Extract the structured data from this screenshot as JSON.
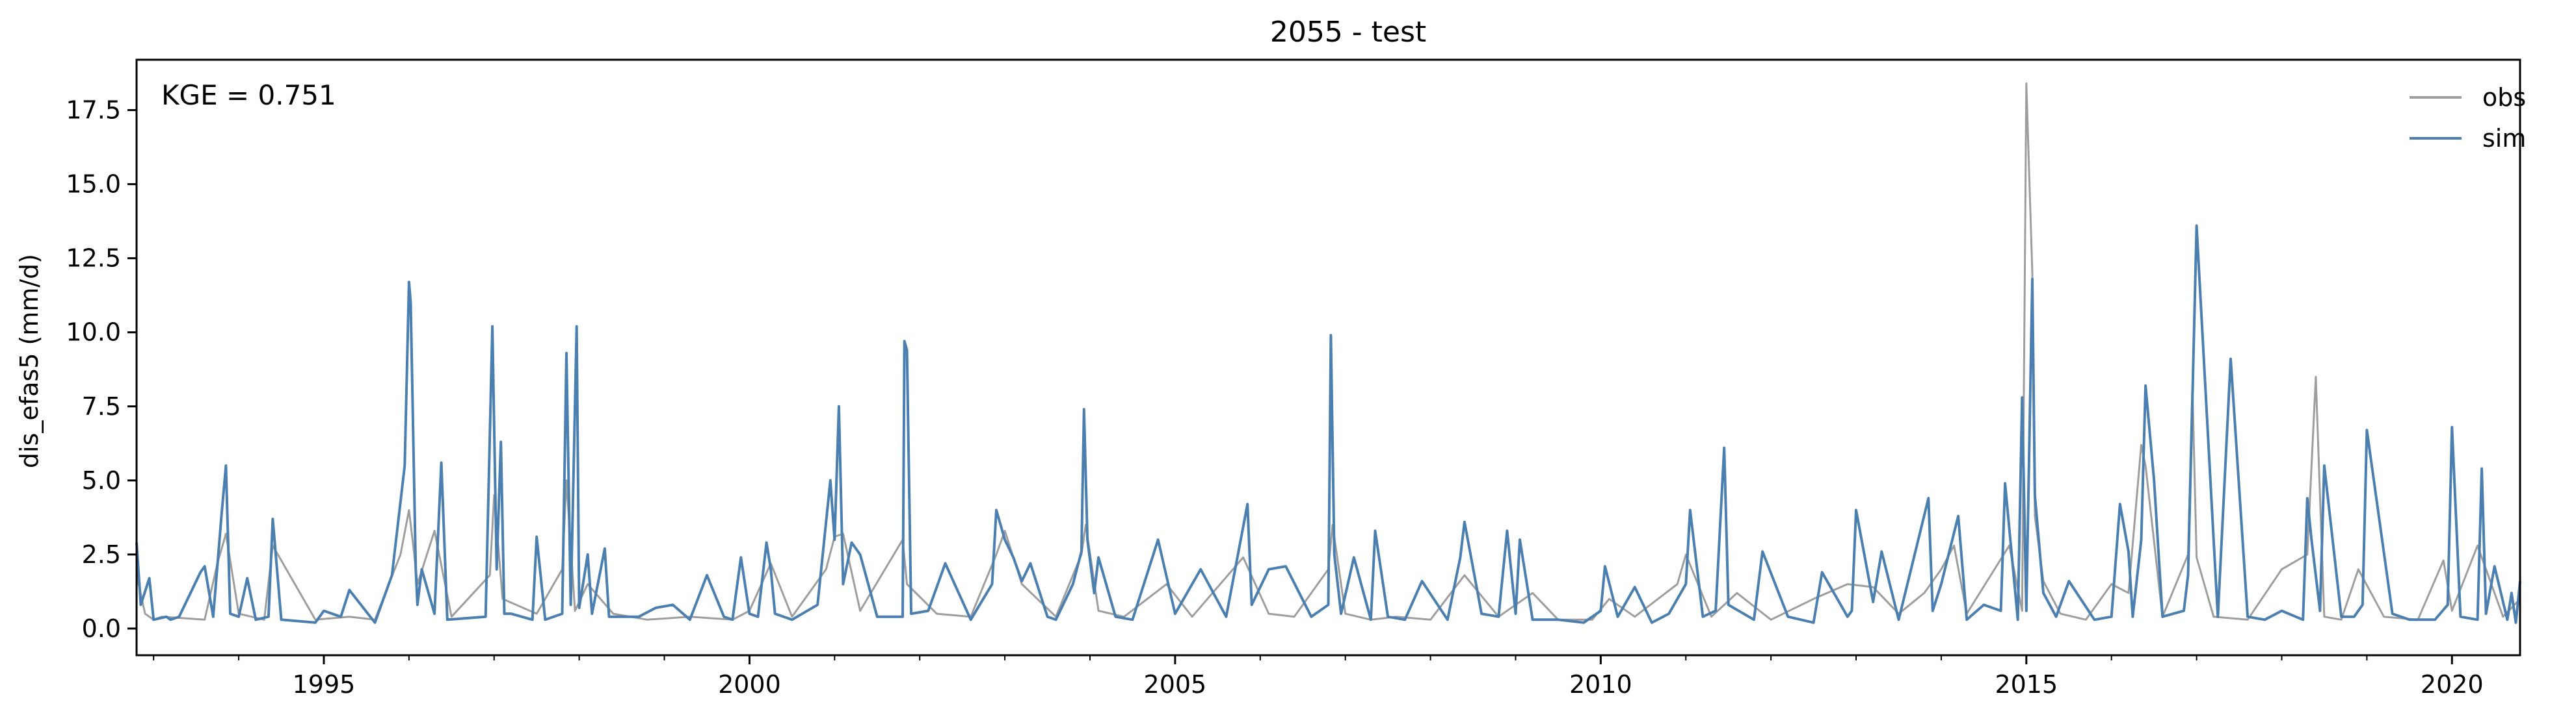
{
  "chart_data": {
    "type": "line",
    "title": "2055 - test",
    "xlabel": "",
    "ylabel": "dis_efas5 (mm/d)",
    "annotation": "KGE = 0.751",
    "xlim": [
      1992.8,
      2020.8
    ],
    "ylim": [
      -0.9,
      19.2
    ],
    "x_ticks": [
      1995,
      2000,
      2005,
      2010,
      2015,
      2020
    ],
    "x_tick_labels": [
      "1995",
      "2000",
      "2005",
      "2010",
      "2015",
      "2020"
    ],
    "y_ticks": [
      0.0,
      2.5,
      5.0,
      7.5,
      10.0,
      12.5,
      15.0,
      17.5
    ],
    "y_tick_labels": [
      "0.0",
      "2.5",
      "5.0",
      "7.5",
      "10.0",
      "12.5",
      "15.0",
      "17.5"
    ],
    "grid": false,
    "legend_position": "top-right",
    "series": [
      {
        "name": "obs",
        "color": "#9e9e9e",
        "x": [
          1992.8,
          1992.9,
          1993.0,
          1993.1,
          1993.6,
          1993.75,
          1993.85,
          1994.0,
          1994.3,
          1994.4,
          1994.9,
          1995.3,
          1995.6,
          1995.9,
          1996.0,
          1996.05,
          1996.1,
          1996.3,
          1996.5,
          1996.95,
          1997.0,
          1997.1,
          1997.5,
          1997.8,
          1997.85,
          1997.95,
          1998.1,
          1998.4,
          1998.8,
          1999.3,
          1999.8,
          2000.0,
          2000.25,
          2000.5,
          2000.9,
          2001.0,
          2001.1,
          2001.3,
          2001.8,
          2001.85,
          2002.2,
          2002.6,
          2002.9,
          2003.0,
          2003.2,
          2003.6,
          2003.9,
          2003.95,
          2004.1,
          2004.4,
          2004.9,
          2005.2,
          2005.8,
          2006.1,
          2006.4,
          2006.8,
          2006.85,
          2007.0,
          2007.3,
          2007.6,
          2008.0,
          2008.4,
          2008.8,
          2009.2,
          2009.5,
          2009.9,
          2010.1,
          2010.4,
          2010.9,
          2011.0,
          2011.3,
          2011.6,
          2012.0,
          2012.5,
          2012.9,
          2013.2,
          2013.5,
          2013.8,
          2014.0,
          2014.15,
          2014.3,
          2014.8,
          2014.95,
          2015.0,
          2015.07,
          2015.1,
          2015.2,
          2015.4,
          2015.7,
          2016.0,
          2016.2,
          2016.35,
          2016.4,
          2016.6,
          2016.9,
          2016.95,
          2017.0,
          2017.2,
          2017.6,
          2018.0,
          2018.3,
          2018.4,
          2018.5,
          2018.7,
          2018.9,
          2019.2,
          2019.6,
          2019.9,
          2020.0,
          2020.3,
          2020.6,
          2020.8
        ],
        "y": [
          1.8,
          0.5,
          0.3,
          0.4,
          0.3,
          2.2,
          3.2,
          0.5,
          0.3,
          2.8,
          0.3,
          0.4,
          0.3,
          2.5,
          4.0,
          2.8,
          1.5,
          3.3,
          0.4,
          1.8,
          4.5,
          1.0,
          0.5,
          2.0,
          5.0,
          0.6,
          1.5,
          0.5,
          0.3,
          0.4,
          0.3,
          0.6,
          2.2,
          0.4,
          2.0,
          3.1,
          3.2,
          0.6,
          3.0,
          1.5,
          0.5,
          0.4,
          2.5,
          3.3,
          1.5,
          0.4,
          2.5,
          3.5,
          0.6,
          0.4,
          1.5,
          0.4,
          2.4,
          0.5,
          0.4,
          2.0,
          3.5,
          0.5,
          0.3,
          0.4,
          0.3,
          1.8,
          0.4,
          1.2,
          0.3,
          0.3,
          1.0,
          0.4,
          1.5,
          2.5,
          0.4,
          1.2,
          0.3,
          1.0,
          1.5,
          1.4,
          0.5,
          1.2,
          2.0,
          2.8,
          0.5,
          2.8,
          0.6,
          18.4,
          12.0,
          3.8,
          1.6,
          0.5,
          0.3,
          1.5,
          1.2,
          6.2,
          5.5,
          0.4,
          2.5,
          8.2,
          2.4,
          0.4,
          0.3,
          2.0,
          2.5,
          8.5,
          0.4,
          0.3,
          2.0,
          0.4,
          0.3,
          2.3,
          0.6,
          2.8,
          0.4,
          1.0
        ]
      },
      {
        "name": "sim",
        "color": "#4a7fb0",
        "x": [
          1992.8,
          1992.85,
          1992.95,
          1993.0,
          1993.15,
          1993.2,
          1993.3,
          1993.55,
          1993.6,
          1993.7,
          1993.8,
          1993.85,
          1993.9,
          1994.0,
          1994.1,
          1994.2,
          1994.35,
          1994.4,
          1994.5,
          1994.9,
          1995.0,
          1995.2,
          1995.3,
          1995.6,
          1995.8,
          1995.95,
          1996.0,
          1996.02,
          1996.05,
          1996.08,
          1996.1,
          1996.15,
          1996.3,
          1996.38,
          1996.45,
          1996.9,
          1996.98,
          1997.03,
          1997.08,
          1997.12,
          1997.2,
          1997.45,
          1997.5,
          1997.6,
          1997.8,
          1997.85,
          1997.9,
          1997.97,
          1998.0,
          1998.1,
          1998.15,
          1998.3,
          1998.35,
          1998.45,
          1998.7,
          1998.9,
          1999.1,
          1999.3,
          1999.5,
          1999.7,
          1999.8,
          1999.9,
          2000.0,
          2000.1,
          2000.2,
          2000.25,
          2000.3,
          2000.5,
          2000.8,
          2000.95,
          2001.0,
          2001.05,
          2001.1,
          2001.2,
          2001.3,
          2001.5,
          2001.8,
          2001.82,
          2001.85,
          2001.9,
          2002.1,
          2002.3,
          2002.6,
          2002.85,
          2002.9,
          2003.0,
          2003.1,
          2003.2,
          2003.3,
          2003.5,
          2003.6,
          2003.8,
          2003.9,
          2003.93,
          2003.97,
          2004.05,
          2004.1,
          2004.3,
          2004.5,
          2004.8,
          2005.0,
          2005.3,
          2005.6,
          2005.85,
          2005.9,
          2006.1,
          2006.3,
          2006.6,
          2006.8,
          2006.83,
          2006.87,
          2006.95,
          2007.1,
          2007.3,
          2007.35,
          2007.5,
          2007.7,
          2007.9,
          2008.2,
          2008.35,
          2008.4,
          2008.6,
          2008.8,
          2008.9,
          2009.0,
          2009.05,
          2009.2,
          2009.5,
          2009.8,
          2010.0,
          2010.05,
          2010.2,
          2010.4,
          2010.6,
          2010.8,
          2011.0,
          2011.05,
          2011.2,
          2011.35,
          2011.45,
          2011.5,
          2011.8,
          2011.9,
          2012.2,
          2012.5,
          2012.6,
          2012.9,
          2012.95,
          2013.0,
          2013.2,
          2013.3,
          2013.5,
          2013.85,
          2013.9,
          2014.0,
          2014.2,
          2014.3,
          2014.5,
          2014.7,
          2014.75,
          2014.9,
          2014.95,
          2015.0,
          2015.07,
          2015.1,
          2015.2,
          2015.35,
          2015.5,
          2015.8,
          2016.0,
          2016.1,
          2016.2,
          2016.25,
          2016.35,
          2016.4,
          2016.5,
          2016.6,
          2016.85,
          2016.9,
          2016.95,
          2017.0,
          2017.2,
          2017.25,
          2017.4,
          2017.6,
          2017.8,
          2018.0,
          2018.25,
          2018.3,
          2018.35,
          2018.45,
          2018.5,
          2018.7,
          2018.85,
          2018.95,
          2019.0,
          2019.3,
          2019.5,
          2019.8,
          2019.95,
          2020.0,
          2020.1,
          2020.3,
          2020.35,
          2020.4,
          2020.5,
          2020.65,
          2020.7,
          2020.75,
          2020.8
        ],
        "y": [
          2.9,
          0.8,
          1.7,
          0.3,
          0.4,
          0.3,
          0.4,
          1.9,
          2.1,
          0.4,
          3.9,
          5.5,
          0.5,
          0.4,
          1.7,
          0.3,
          0.4,
          3.7,
          0.3,
          0.2,
          0.6,
          0.4,
          1.3,
          0.2,
          1.8,
          5.5,
          11.7,
          11.0,
          6.5,
          2.0,
          0.8,
          2.0,
          0.5,
          5.6,
          0.3,
          0.4,
          10.2,
          2.0,
          6.3,
          0.5,
          0.5,
          0.3,
          3.1,
          0.3,
          0.5,
          9.3,
          0.8,
          10.2,
          0.7,
          2.5,
          0.5,
          2.7,
          0.4,
          0.4,
          0.4,
          0.7,
          0.8,
          0.3,
          1.8,
          0.4,
          0.3,
          2.4,
          0.5,
          0.4,
          2.9,
          2.0,
          0.5,
          0.3,
          0.8,
          5.0,
          3.0,
          7.5,
          1.5,
          2.9,
          2.5,
          0.4,
          0.4,
          9.7,
          9.4,
          0.5,
          0.6,
          2.2,
          0.3,
          1.5,
          4.0,
          3.0,
          2.4,
          1.6,
          2.2,
          0.4,
          0.3,
          1.5,
          2.6,
          7.4,
          3.0,
          1.2,
          2.4,
          0.4,
          0.3,
          3.0,
          0.5,
          2.0,
          0.4,
          4.2,
          0.8,
          2.0,
          2.1,
          0.4,
          0.8,
          9.9,
          2.5,
          0.5,
          2.4,
          0.3,
          3.3,
          0.4,
          0.3,
          1.6,
          0.3,
          2.4,
          3.6,
          0.5,
          0.4,
          3.3,
          0.5,
          3.0,
          0.3,
          0.3,
          0.2,
          0.6,
          2.1,
          0.4,
          1.4,
          0.2,
          0.5,
          1.5,
          4.0,
          0.4,
          0.6,
          6.1,
          0.8,
          0.3,
          2.6,
          0.4,
          0.2,
          1.9,
          0.4,
          0.6,
          4.0,
          0.9,
          2.6,
          0.3,
          4.4,
          0.6,
          1.5,
          3.8,
          0.3,
          0.8,
          0.6,
          4.9,
          0.3,
          7.8,
          0.6,
          11.8,
          4.5,
          1.2,
          0.4,
          1.6,
          0.3,
          0.4,
          4.2,
          2.6,
          0.4,
          3.0,
          8.2,
          5.0,
          0.4,
          0.6,
          1.8,
          7.7,
          13.6,
          3.0,
          0.4,
          9.1,
          0.4,
          0.3,
          0.6,
          0.3,
          4.4,
          3.0,
          0.6,
          5.5,
          0.4,
          0.4,
          0.8,
          6.7,
          0.5,
          0.3,
          0.3,
          0.8,
          6.8,
          0.4,
          0.3,
          5.4,
          0.5,
          2.1,
          0.3,
          1.2,
          0.2,
          1.6
        ]
      }
    ]
  }
}
